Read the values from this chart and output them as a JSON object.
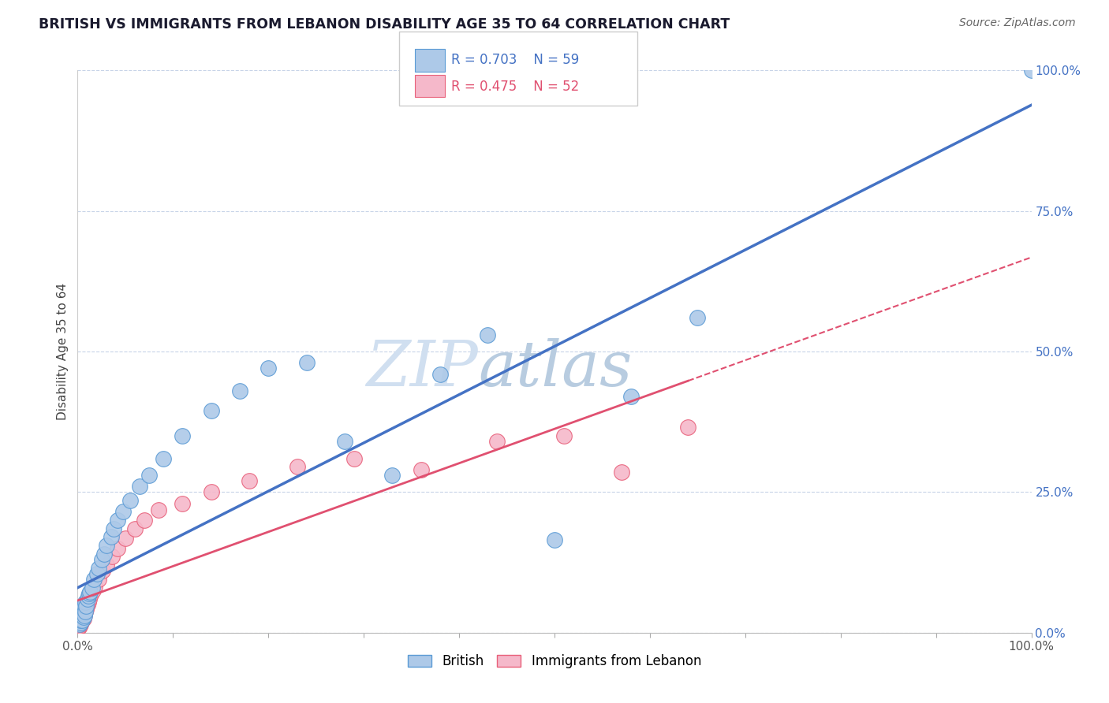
{
  "title": "BRITISH VS IMMIGRANTS FROM LEBANON DISABILITY AGE 35 TO 64 CORRELATION CHART",
  "source": "Source: ZipAtlas.com",
  "ylabel": "Disability Age 35 to 64",
  "xlim": [
    0,
    1
  ],
  "ylim": [
    0,
    1
  ],
  "legend_r1": "R = 0.703",
  "legend_n1": "N = 59",
  "legend_r2": "R = 0.475",
  "legend_n2": "N = 52",
  "british_color": "#adc9e8",
  "british_edge_color": "#5b9bd5",
  "lebanon_color": "#f5b8ca",
  "lebanon_edge_color": "#e8607a",
  "line_british_color": "#4472c4",
  "line_lebanon_color": "#e05070",
  "watermark_zip_color": "#c5d8ee",
  "watermark_atlas_color": "#b8cce4",
  "background_color": "#ffffff",
  "grid_color": "#c8d4e8",
  "british_x": [
    0.001,
    0.001,
    0.001,
    0.002,
    0.002,
    0.002,
    0.002,
    0.003,
    0.003,
    0.003,
    0.003,
    0.003,
    0.004,
    0.004,
    0.004,
    0.005,
    0.005,
    0.005,
    0.005,
    0.006,
    0.006,
    0.006,
    0.007,
    0.007,
    0.008,
    0.008,
    0.009,
    0.01,
    0.011,
    0.012,
    0.013,
    0.015,
    0.017,
    0.02,
    0.022,
    0.025,
    0.028,
    0.03,
    0.035,
    0.038,
    0.042,
    0.048,
    0.055,
    0.065,
    0.075,
    0.09,
    0.11,
    0.14,
    0.17,
    0.2,
    0.24,
    0.28,
    0.33,
    0.38,
    0.43,
    0.5,
    0.58,
    0.65,
    1.0
  ],
  "british_y": [
    0.02,
    0.025,
    0.03,
    0.015,
    0.02,
    0.025,
    0.03,
    0.018,
    0.022,
    0.028,
    0.032,
    0.038,
    0.025,
    0.03,
    0.04,
    0.022,
    0.03,
    0.038,
    0.045,
    0.028,
    0.035,
    0.042,
    0.03,
    0.048,
    0.038,
    0.055,
    0.048,
    0.06,
    0.065,
    0.07,
    0.072,
    0.08,
    0.095,
    0.105,
    0.115,
    0.13,
    0.14,
    0.155,
    0.17,
    0.185,
    0.2,
    0.215,
    0.235,
    0.26,
    0.28,
    0.31,
    0.35,
    0.395,
    0.43,
    0.47,
    0.48,
    0.34,
    0.28,
    0.46,
    0.53,
    0.165,
    0.42,
    0.56,
    1.0
  ],
  "lebanon_x": [
    0.001,
    0.001,
    0.001,
    0.001,
    0.001,
    0.002,
    0.002,
    0.002,
    0.002,
    0.002,
    0.003,
    0.003,
    0.003,
    0.003,
    0.004,
    0.004,
    0.004,
    0.005,
    0.005,
    0.005,
    0.006,
    0.006,
    0.006,
    0.007,
    0.008,
    0.008,
    0.009,
    0.01,
    0.011,
    0.012,
    0.014,
    0.016,
    0.018,
    0.022,
    0.026,
    0.03,
    0.036,
    0.042,
    0.05,
    0.06,
    0.07,
    0.085,
    0.11,
    0.14,
    0.18,
    0.23,
    0.29,
    0.36,
    0.44,
    0.51,
    0.57,
    0.64
  ],
  "lebanon_y": [
    0.01,
    0.015,
    0.018,
    0.022,
    0.025,
    0.012,
    0.015,
    0.02,
    0.025,
    0.03,
    0.015,
    0.02,
    0.025,
    0.035,
    0.02,
    0.025,
    0.032,
    0.022,
    0.03,
    0.038,
    0.025,
    0.032,
    0.04,
    0.03,
    0.038,
    0.048,
    0.042,
    0.05,
    0.055,
    0.06,
    0.068,
    0.075,
    0.082,
    0.095,
    0.11,
    0.12,
    0.135,
    0.15,
    0.168,
    0.185,
    0.2,
    0.218,
    0.23,
    0.25,
    0.27,
    0.295,
    0.31,
    0.29,
    0.34,
    0.35,
    0.285,
    0.365
  ]
}
